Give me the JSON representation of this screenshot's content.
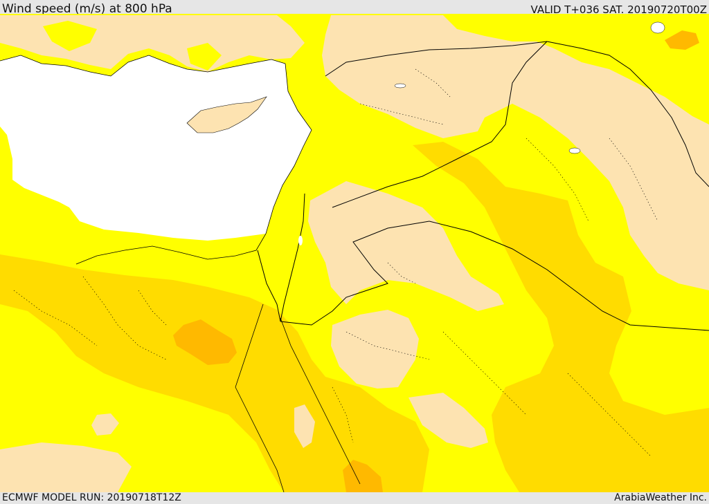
{
  "header": {
    "title": "Wind speed (m/s) at 800 hPa",
    "valid_time": "VALID T+036 SAT. 20190720T00Z"
  },
  "footer": {
    "model_run": "ECMWF MODEL RUN: 20190718T12Z",
    "credit": "ArabiaWeather Inc."
  },
  "colors": {
    "sea": "#ffffff",
    "band_lowest": "#fde3b1",
    "band_low": "#ffff00",
    "band_mid": "#ffdc00",
    "band_high": "#ffb900",
    "borders": "#000000"
  },
  "map_layers": [
    "sea",
    "wind-speed-low-band",
    "wind-speed-lowest-band",
    "wind-speed-mid-band",
    "wind-speed-high-band",
    "coastlines",
    "country-borders",
    "province-borders"
  ]
}
